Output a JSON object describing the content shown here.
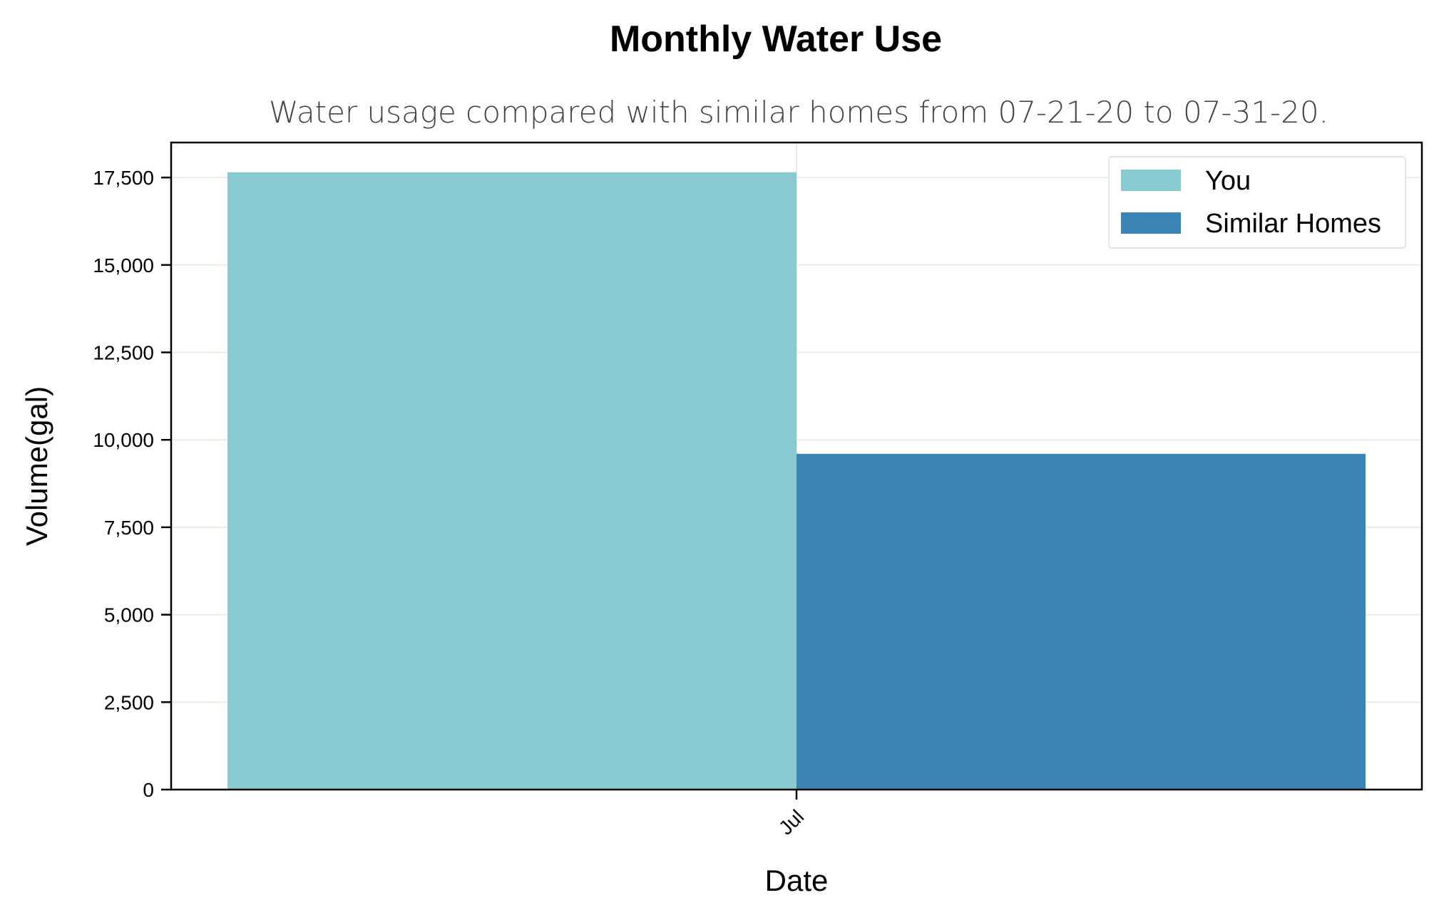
{
  "chart_data": {
    "type": "bar",
    "title": "Monthly Water Use",
    "subtitle": "Water usage compared with similar homes from 07-21-20 to 07-31-20.",
    "xlabel": "Date",
    "ylabel": "Volume(gal)",
    "categories": [
      "Jul"
    ],
    "series": [
      {
        "name": "You",
        "values": [
          17650
        ],
        "color": "#88cad0"
      },
      {
        "name": "Similar Homes",
        "values": [
          9600
        ],
        "color": "#3a84b6"
      }
    ],
    "ylim": [
      0,
      18500
    ],
    "yticks": [
      0,
      2500,
      5000,
      7500,
      10000,
      12500,
      15000,
      17500
    ],
    "ytick_labels": [
      "0",
      "2,500",
      "5,000",
      "7,500",
      "10,000",
      "12,500",
      "15,000",
      "17,500"
    ],
    "grid": true,
    "legend_position": "top-right"
  }
}
